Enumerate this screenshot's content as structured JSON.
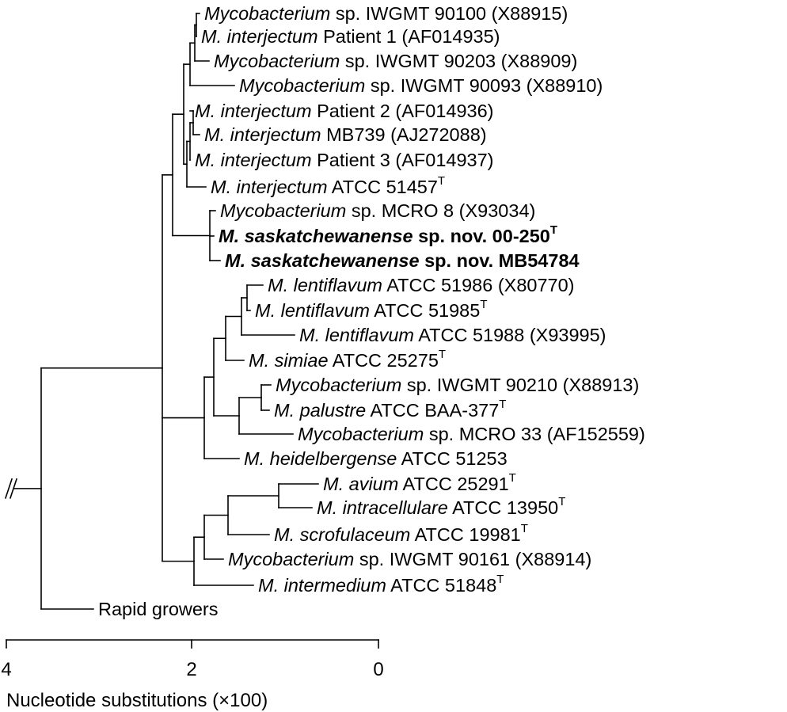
{
  "tree": {
    "taxa": [
      {
        "id": "t1",
        "italic": "Mycobacterium",
        "rest": " sp. IWGMT 90100 (X88915)",
        "sup": ""
      },
      {
        "id": "t2",
        "italic": "M. interjectum",
        "rest": " Patient 1 (AF014935)",
        "sup": ""
      },
      {
        "id": "t3",
        "italic": "Mycobacterium",
        "rest": " sp. IWGMT 90203 (X88909)",
        "sup": ""
      },
      {
        "id": "t4",
        "italic": "Mycobacterium",
        "rest": " sp. IWGMT 90093 (X88910)",
        "sup": ""
      },
      {
        "id": "t5",
        "italic": "M. interjectum",
        "rest": " Patient 2 (AF014936)",
        "sup": ""
      },
      {
        "id": "t6",
        "italic": "M. interjectum",
        "rest": " MB739 (AJ272088)",
        "sup": ""
      },
      {
        "id": "t7",
        "italic": "M. interjectum",
        "rest": " Patient 3 (AF014937)",
        "sup": ""
      },
      {
        "id": "t8",
        "italic": "M. interjectum",
        "rest": " ATCC 51457",
        "sup": "T"
      },
      {
        "id": "t9",
        "italic": "Mycobacterium",
        "rest": " sp. MCRO 8 (X93034)",
        "sup": ""
      },
      {
        "id": "t10",
        "italic": "M. saskatchewanense",
        "rest": " sp. nov. 00-250",
        "sup": "T",
        "bold": true
      },
      {
        "id": "t11",
        "italic": "M. saskatchewanense",
        "rest": " sp. nov. MB54784",
        "sup": "",
        "bold": true
      },
      {
        "id": "t12",
        "italic": "M. lentiflavum",
        "rest": " ATCC 51986 (X80770)",
        "sup": ""
      },
      {
        "id": "t13",
        "italic": "M. lentiflavum",
        "rest": " ATCC 51985",
        "sup": "T"
      },
      {
        "id": "t14",
        "italic": "M. lentiflavum",
        "rest": " ATCC 51988 (X93995)",
        "sup": ""
      },
      {
        "id": "t15",
        "italic": "M. simiae",
        "rest": " ATCC 25275",
        "sup": "T"
      },
      {
        "id": "t16",
        "italic": "Mycobacterium",
        "rest": " sp. IWGMT 90210 (X88913)",
        "sup": ""
      },
      {
        "id": "t17",
        "italic": "M. palustre",
        "rest": " ATCC BAA-377",
        "sup": "T"
      },
      {
        "id": "t18",
        "italic": "Mycobacterium",
        "rest": " sp. MCRO 33 (AF152559)",
        "sup": ""
      },
      {
        "id": "t19",
        "italic": "M. heidelbergense",
        "rest": " ATCC 51253",
        "sup": ""
      },
      {
        "id": "t20",
        "italic": "M. avium",
        "rest": " ATCC 25291",
        "sup": "T"
      },
      {
        "id": "t21",
        "italic": "M. intracellulare",
        "rest": " ATCC 13950",
        "sup": "T"
      },
      {
        "id": "t22",
        "italic": "M. scrofulaceum",
        "rest": " ATCC 19981",
        "sup": "T"
      },
      {
        "id": "t23",
        "italic": "Mycobacterium",
        "rest": " sp. IWGMT 90161 (X88914)",
        "sup": ""
      },
      {
        "id": "t24",
        "italic": "M. intermedium",
        "rest": " ATCC 51848",
        "sup": "T"
      },
      {
        "id": "t25",
        "italic": "",
        "rest": "Rapid growers",
        "sup": ""
      }
    ],
    "scale": {
      "ticks": [
        "4",
        "2",
        "0"
      ],
      "label": "Nucleotide substitutions (×100)"
    }
  }
}
